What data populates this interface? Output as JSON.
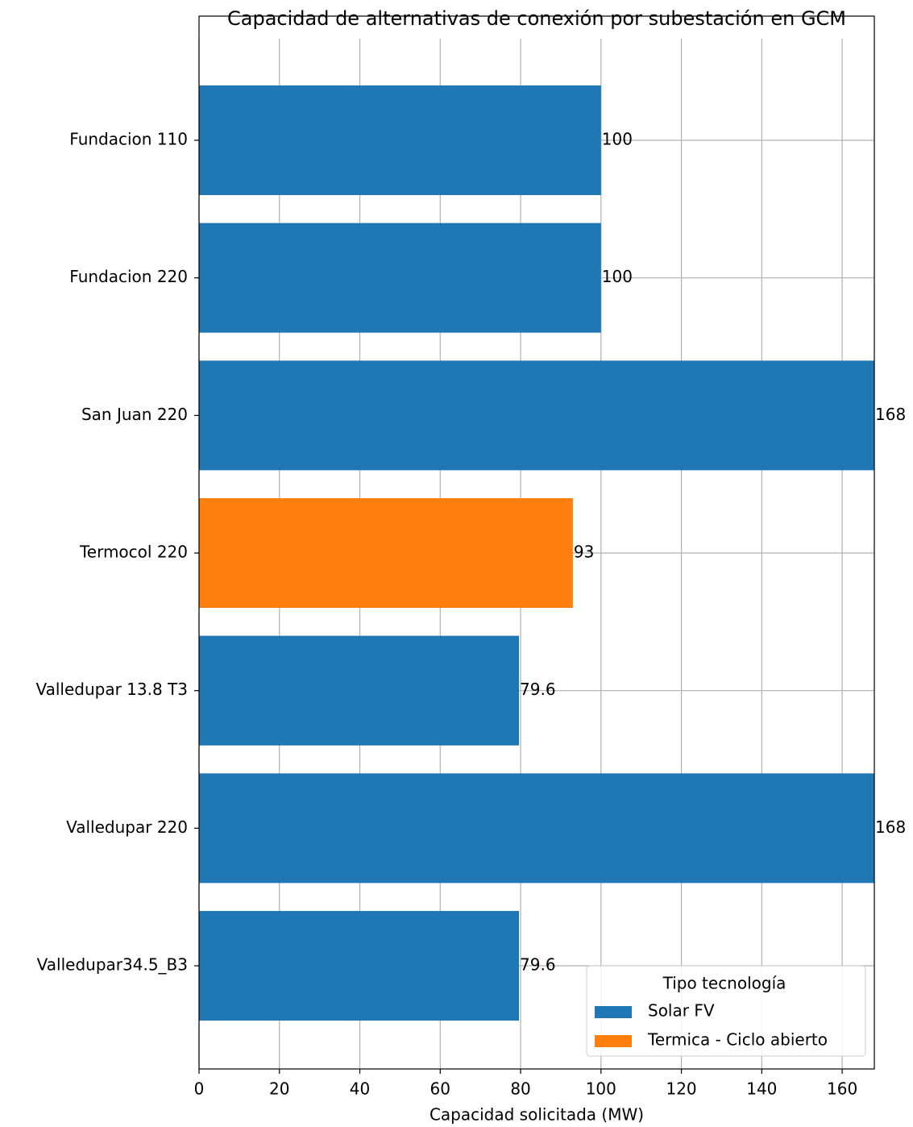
{
  "chart_data": {
    "type": "barh",
    "title": "Capacidad de alternativas de conexión por subestación en GCM",
    "xlabel": "Capacidad solicitada (MW)",
    "categories": [
      "Fundacion 110",
      "Fundacion 220",
      "San Juan 220",
      "Termocol 220",
      "Valledupar 13.8 T3",
      "Valledupar 220",
      "Valledupar34.5_B3"
    ],
    "series": [
      {
        "name": "Solar FV",
        "color": "#1f77b4",
        "values": [
          100,
          100,
          168,
          null,
          79.6,
          168,
          79.6
        ]
      },
      {
        "name": "Termica - Ciclo abierto",
        "color": "#ff7f0e",
        "values": [
          null,
          null,
          null,
          93,
          null,
          null,
          null
        ]
      }
    ],
    "xlim": [
      0,
      168
    ],
    "xticks": [
      0,
      20,
      40,
      60,
      80,
      100,
      120,
      140,
      160
    ],
    "grid": true,
    "legend_title": "Tipo tecnología",
    "legend_loc": "lower right"
  }
}
